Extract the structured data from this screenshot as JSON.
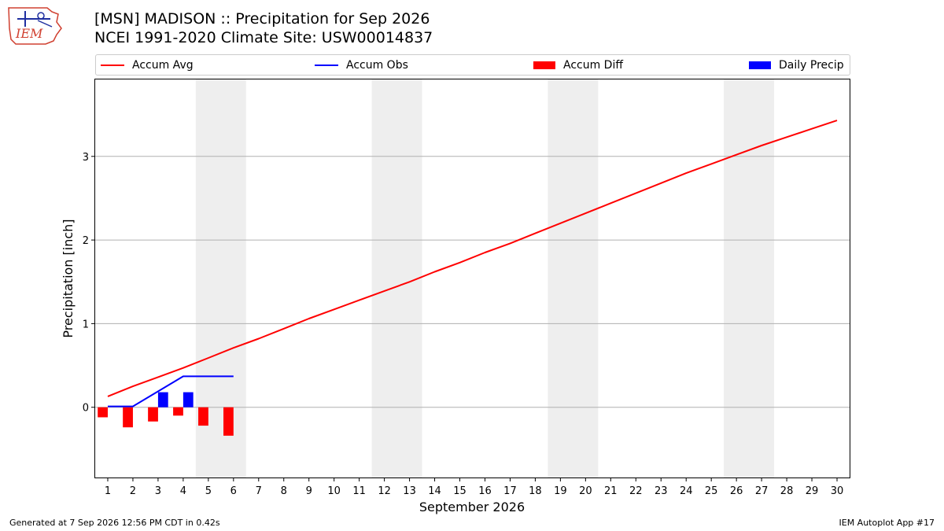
{
  "title": {
    "line1": "[MSN] MADISON :: Precipitation for Sep 2026",
    "line2": "NCEI 1991-2020 Climate Site: USW00014837"
  },
  "logo": {
    "text": "IEM"
  },
  "legend": {
    "items": [
      {
        "label": "Accum Avg",
        "color": "#ff0000",
        "kind": "line"
      },
      {
        "label": "Accum Obs",
        "color": "#0000ff",
        "kind": "line"
      },
      {
        "label": "Accum Diff",
        "color": "#ff0000",
        "kind": "box"
      },
      {
        "label": "Daily Precip",
        "color": "#0000ff",
        "kind": "box"
      }
    ]
  },
  "footer": {
    "left": "Generated at 7 Sep 2026 12:56 PM CDT in 0.42s",
    "right": "IEM Autoplot App #17"
  },
  "chart_data": {
    "type": "line",
    "title": "[MSN] MADISON :: Precipitation for Sep 2026",
    "subtitle": "NCEI 1991-2020 Climate Site: USW00014837",
    "xlabel": "September 2026",
    "ylabel": "Precipitation [inch]",
    "xlim": [
      0.5,
      30.5
    ],
    "ylim": [
      -0.84,
      3.92
    ],
    "yticks": [
      0,
      1,
      2,
      3
    ],
    "x": [
      1,
      2,
      3,
      4,
      5,
      6,
      7,
      8,
      9,
      10,
      11,
      12,
      13,
      14,
      15,
      16,
      17,
      18,
      19,
      20,
      21,
      22,
      23,
      24,
      25,
      26,
      27,
      28,
      29,
      30
    ],
    "grid": "horizontal",
    "weekend_shading": [
      [
        4.5,
        6.5
      ],
      [
        11.5,
        13.5
      ],
      [
        18.5,
        20.5
      ],
      [
        25.5,
        27.5
      ]
    ],
    "series": [
      {
        "name": "Accum Avg",
        "kind": "line",
        "color": "#ff0000",
        "x": [
          1,
          2,
          3,
          4,
          5,
          6,
          7,
          8,
          9,
          10,
          11,
          12,
          13,
          14,
          15,
          16,
          17,
          18,
          19,
          20,
          21,
          22,
          23,
          24,
          25,
          26,
          27,
          28,
          29,
          30
        ],
        "values": [
          0.13,
          0.25,
          0.36,
          0.47,
          0.59,
          0.71,
          0.82,
          0.94,
          1.06,
          1.17,
          1.28,
          1.39,
          1.5,
          1.62,
          1.73,
          1.85,
          1.96,
          2.08,
          2.2,
          2.32,
          2.44,
          2.56,
          2.68,
          2.8,
          2.91,
          3.02,
          3.13,
          3.23,
          3.33,
          3.43
        ]
      },
      {
        "name": "Accum Obs",
        "kind": "line",
        "color": "#0000ff",
        "x": [
          1,
          2,
          3,
          4,
          5,
          6
        ],
        "values": [
          0.01,
          0.01,
          0.19,
          0.37,
          0.37,
          0.37
        ]
      },
      {
        "name": "Accum Diff",
        "kind": "bar",
        "color": "#ff0000",
        "offset": -0.2,
        "x": [
          1,
          2,
          3,
          4,
          5,
          6
        ],
        "values": [
          -0.12,
          -0.24,
          -0.17,
          -0.1,
          -0.22,
          -0.34
        ]
      },
      {
        "name": "Daily Precip",
        "kind": "bar",
        "color": "#0000ff",
        "offset": 0.2,
        "x": [
          1,
          2,
          3,
          4,
          5,
          6
        ],
        "values": [
          0,
          0,
          0.18,
          0.18,
          0,
          0
        ]
      }
    ]
  }
}
